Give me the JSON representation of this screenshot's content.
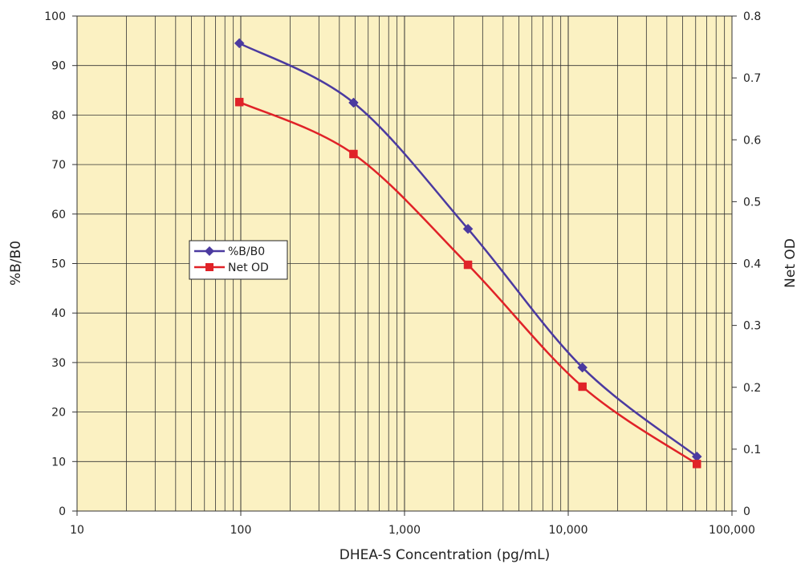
{
  "chart_data": {
    "type": "line",
    "xlabel": "DHEA-S Concentration (pg/mL)",
    "ylabel_left": "%B/B0",
    "ylabel_right": "Net OD",
    "x_scale": "log",
    "x_ticks": [
      10,
      100,
      1000,
      10000,
      100000
    ],
    "x_tick_labels": [
      "10",
      "100",
      "1,000",
      "10,000",
      "100,000"
    ],
    "xlim": [
      10,
      100000
    ],
    "ylim_left": [
      0,
      100
    ],
    "y_ticks_left": [
      0,
      10,
      20,
      30,
      40,
      50,
      60,
      70,
      80,
      90,
      100
    ],
    "y_tick_labels_left": [
      "0",
      "10",
      "20",
      "30",
      "40",
      "50",
      "60",
      "70",
      "80",
      "90",
      "100"
    ],
    "ylim_right": [
      0,
      0.8
    ],
    "y_ticks_right": [
      0,
      0.1,
      0.2,
      0.3,
      0.4,
      0.5,
      0.6,
      0.7,
      0.8
    ],
    "y_tick_labels_right": [
      "0",
      "0.1",
      "0.2",
      "0.3",
      "0.4",
      "0.5",
      "0.6",
      "0.7",
      "0.8"
    ],
    "grid": true,
    "legend_position": "center-left",
    "plot_background": "#fbf1c2",
    "series": [
      {
        "name": "%B/B0",
        "axis": "left",
        "color": "#4b3aa0",
        "marker": "diamond",
        "x": [
          98,
          488,
          2441,
          12207,
          61035
        ],
        "y": [
          94.5,
          82.5,
          57.0,
          29.0,
          11.0
        ]
      },
      {
        "name": "Net OD",
        "axis": "right",
        "color": "#e02228",
        "marker": "square",
        "x": [
          98,
          488,
          2441,
          12207,
          61035
        ],
        "y": [
          0.661,
          0.577,
          0.398,
          0.201,
          0.076
        ]
      }
    ]
  }
}
